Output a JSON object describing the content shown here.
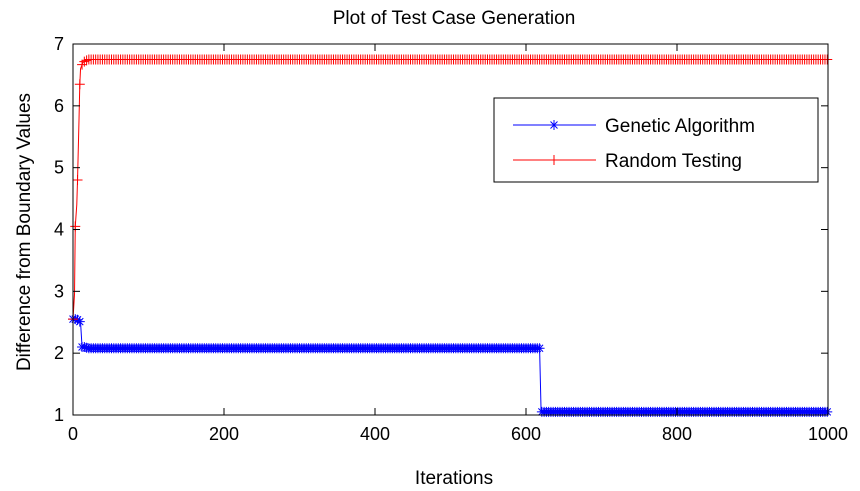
{
  "chart_data": {
    "type": "line",
    "title": "Plot of Test Case Generation",
    "xlabel": "Iterations",
    "ylabel": "Difference from Boundary Values",
    "xlim": [
      0,
      1000
    ],
    "ylim": [
      1,
      7
    ],
    "xticks": [
      0,
      200,
      400,
      600,
      800,
      1000
    ],
    "yticks": [
      1,
      2,
      3,
      4,
      5,
      6,
      7
    ],
    "grid": false,
    "legend_position": "top-right",
    "series": [
      {
        "name": "Genetic Algorithm",
        "color": "#0000ff",
        "marker": "asterisk",
        "points": [
          [
            0,
            2.55
          ],
          [
            5,
            2.55
          ],
          [
            10,
            2.5
          ],
          [
            12,
            2.1
          ],
          [
            15,
            2.1
          ],
          [
            20,
            2.08
          ],
          [
            618,
            2.08
          ],
          [
            620,
            1.05
          ],
          [
            1000,
            1.05
          ]
        ]
      },
      {
        "name": "Random Testing",
        "color": "#ff0000",
        "marker": "plus",
        "points": [
          [
            0,
            2.55
          ],
          [
            2,
            2.95
          ],
          [
            3,
            4.05
          ],
          [
            5,
            4.4
          ],
          [
            6,
            4.8
          ],
          [
            8,
            5.8
          ],
          [
            9,
            6.35
          ],
          [
            10,
            6.6
          ],
          [
            13,
            6.7
          ],
          [
            20,
            6.75
          ],
          [
            1000,
            6.75
          ]
        ]
      }
    ]
  }
}
